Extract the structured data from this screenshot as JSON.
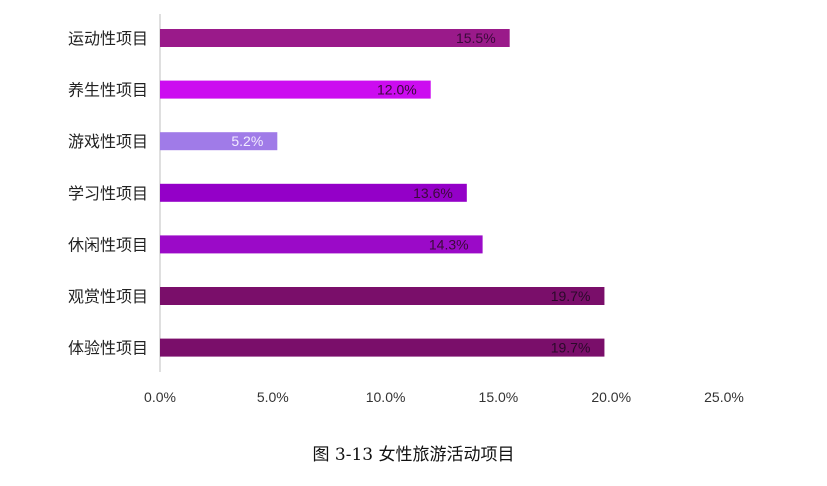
{
  "chart_data": {
    "type": "bar",
    "orientation": "horizontal",
    "categories": [
      "运动性项目",
      "养生性项目",
      "游戏性项目",
      "学习性项目",
      "休闲性项目",
      "观赏性项目",
      "体验性项目"
    ],
    "values": [
      15.5,
      12.0,
      5.2,
      13.6,
      14.3,
      19.7,
      19.7
    ],
    "value_labels": [
      "15.5%",
      "12.0%",
      "5.2%",
      "13.6%",
      "14.3%",
      "19.7%",
      "19.7%"
    ],
    "bar_colors": [
      "#9a1a8a",
      "#cc0cf0",
      "#a07be8",
      "#9400c8",
      "#9b0ac8",
      "#7a0e6a",
      "#7a0e6a"
    ],
    "label_colors": [
      "#3a0a3a",
      "#3a0a3a",
      "#f2ecff",
      "#3a0a3a",
      "#3a0a3a",
      "#2a0a2a",
      "#2a0a2a"
    ],
    "xlim": [
      0,
      25
    ],
    "xticks": [
      "0.0%",
      "5.0%",
      "10.0%",
      "15.0%",
      "20.0%",
      "25.0%"
    ],
    "xlabel": "",
    "ylabel": "",
    "grid": false,
    "legend": "none"
  },
  "caption": "图 3-13 女性旅游活动项目"
}
